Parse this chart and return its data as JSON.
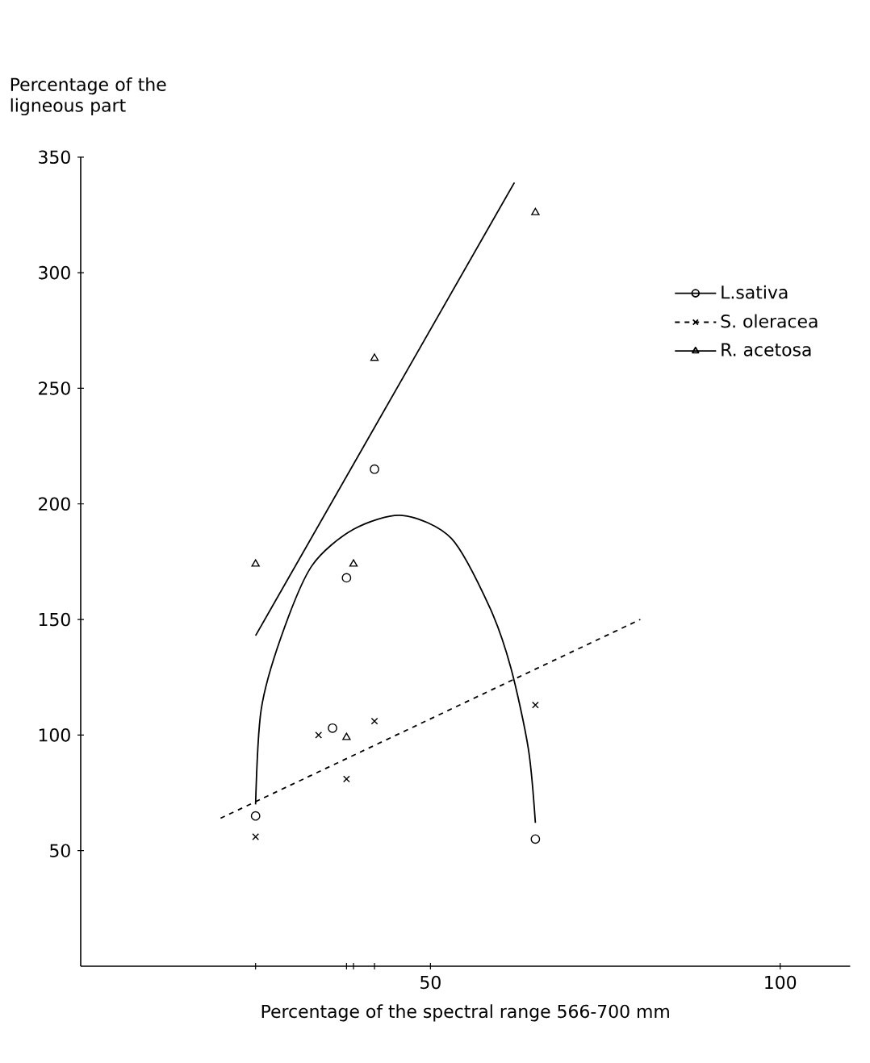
{
  "chart_data": {
    "type": "scatter",
    "xlabel": "Percentage of the spectral range 566-700 mm",
    "ylabel": "Percentage of the ligneous part",
    "xlim": [
      0,
      110
    ],
    "ylim": [
      0,
      350
    ],
    "xticks": [
      {
        "value": 25,
        "label": null
      },
      {
        "value": 38,
        "label": null
      },
      {
        "value": 39,
        "label": null
      },
      {
        "value": 42,
        "label": null
      },
      50,
      100
    ],
    "yticks": [
      50,
      100,
      150,
      200,
      250,
      300,
      350
    ],
    "legend": "top right",
    "series": [
      {
        "marker": "circle",
        "color": "#000000",
        "x": [
          25,
          36,
          38,
          42,
          65
        ],
        "values": [
          65,
          103,
          168,
          215,
          55
        ]
      },
      {
        "marker": "cross",
        "color": "#000000",
        "x": [
          25,
          34,
          38,
          42,
          65
        ],
        "values": [
          56,
          100,
          81,
          106,
          113
        ]
      },
      {
        "marker": "triangle",
        "color": "#000000",
        "x": [
          25,
          38,
          39,
          42,
          65
        ],
        "values": [
          174,
          99,
          174,
          263,
          326
        ]
      },
      {
        "name": "L.sativa",
        "type": "line",
        "line_style": "solid",
        "color": "#000000",
        "x": [
          25,
          25.8,
          28.6,
          33,
          39,
          46,
          53,
          58.5,
          61.5,
          64,
          65
        ],
        "values": [
          70,
          111,
          142,
          173,
          189,
          195,
          185,
          155,
          129,
          94,
          62
        ]
      },
      {
        "name": "S. oleracea",
        "type": "line",
        "line_style": "dashed",
        "color": "#000000",
        "x": [
          20,
          80
        ],
        "values": [
          64,
          150
        ]
      },
      {
        "name": "R. acetosa",
        "type": "line",
        "line_style": "solid",
        "color": "#000000",
        "x": [
          25,
          62
        ],
        "values": [
          143,
          339
        ]
      }
    ]
  }
}
